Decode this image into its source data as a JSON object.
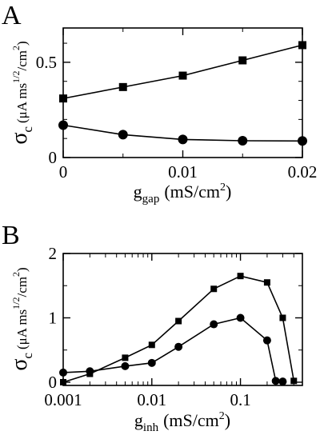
{
  "chart_data": [
    {
      "panel_label": "A",
      "type": "line",
      "x": [
        0,
        0.005,
        0.01,
        0.015,
        0.02
      ],
      "xlim": [
        0,
        0.02
      ],
      "ylim": [
        0,
        0.68
      ],
      "x_scale": "linear",
      "x_ticks": [
        0,
        0.01,
        0.02
      ],
      "x_tick_labels": [
        "0",
        "0.01",
        "0.02"
      ],
      "y_ticks": [
        0,
        0.5
      ],
      "y_tick_labels": [
        "0",
        "0.5"
      ],
      "xlabel": {
        "main": "g",
        "sub": "gap",
        "unit": "(mS/cm",
        "sup": "2",
        "close": ")"
      },
      "ylabel": {
        "main": "σ",
        "sub": "c",
        "unit_a": "(μA ms",
        "sup1": "1/2",
        "unit_b": "/cm",
        "sup2": "2",
        "close": ")"
      },
      "grid": false,
      "series": [
        {
          "marker": "square",
          "values": [
            0.31,
            0.37,
            0.43,
            0.51,
            0.59
          ]
        },
        {
          "marker": "circle",
          "values": [
            0.17,
            0.12,
            0.095,
            0.088,
            0.087
          ]
        }
      ]
    },
    {
      "panel_label": "B",
      "type": "line",
      "x_scale": "log",
      "xlim": [
        0.001,
        0.5
      ],
      "ylim": [
        -0.05,
        2.0
      ],
      "x_ticks": [
        0.001,
        0.01,
        0.1
      ],
      "x_tick_labels": [
        "0.001",
        "0.01",
        "0.1"
      ],
      "y_ticks": [
        0,
        1,
        2
      ],
      "y_tick_labels": [
        "0",
        "1",
        "2"
      ],
      "xlabel": {
        "main": "g",
        "sub": "inh",
        "unit": "(mS/cm",
        "sup": "2",
        "close": ")"
      },
      "ylabel": {
        "main": "σ",
        "sub": "c",
        "unit_a": "(μA ms",
        "sup1": "1/2",
        "unit_b": "/cm",
        "sup2": "2",
        "close": ")"
      },
      "grid": false,
      "series": [
        {
          "marker": "square",
          "x": [
            0.001,
            0.002,
            0.005,
            0.01,
            0.02,
            0.05,
            0.1,
            0.2,
            0.3,
            0.4
          ],
          "values": [
            0.0,
            0.13,
            0.38,
            0.58,
            0.95,
            1.45,
            1.65,
            1.55,
            1.0,
            0.02
          ]
        },
        {
          "marker": "circle",
          "x": [
            0.001,
            0.002,
            0.005,
            0.01,
            0.02,
            0.05,
            0.1,
            0.2,
            0.25,
            0.3
          ],
          "values": [
            0.15,
            0.17,
            0.25,
            0.3,
            0.55,
            0.9,
            1.0,
            0.65,
            0.02,
            0.01
          ]
        }
      ]
    }
  ]
}
